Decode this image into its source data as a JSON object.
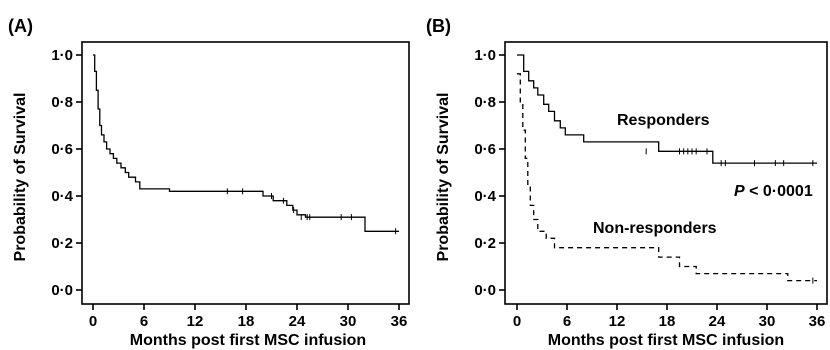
{
  "chart_data": [
    {
      "type": "line",
      "panel_label": "(A)",
      "xlabel": "Months post first MSC infusion",
      "ylabel": "Probability of Survival",
      "xlim": [
        0,
        36
      ],
      "ylim": [
        0,
        1
      ],
      "xticks": [
        0,
        6,
        12,
        18,
        24,
        30,
        36
      ],
      "xtick_labels": [
        "0",
        "6",
        "12",
        "18",
        "24",
        "30",
        "36"
      ],
      "yticks": [
        0,
        0.2,
        0.4,
        0.6,
        0.8,
        1.0
      ],
      "ytick_labels": [
        "0·0",
        "0·2",
        "0·4",
        "0·6",
        "0·8",
        "1·0"
      ],
      "series": [
        {
          "style": "solid",
          "step": [
            [
              0,
              1.0
            ],
            [
              0.2,
              0.93
            ],
            [
              0.4,
              0.85
            ],
            [
              0.6,
              0.77
            ],
            [
              0.8,
              0.7
            ],
            [
              1.0,
              0.66
            ],
            [
              1.3,
              0.63
            ],
            [
              1.6,
              0.6
            ],
            [
              2.0,
              0.58
            ],
            [
              2.4,
              0.56
            ],
            [
              2.8,
              0.54
            ],
            [
              3.3,
              0.52
            ],
            [
              3.8,
              0.5
            ],
            [
              4.2,
              0.48
            ],
            [
              5.0,
              0.46
            ],
            [
              5.5,
              0.43
            ],
            [
              9.0,
              0.42
            ],
            [
              20.0,
              0.4
            ],
            [
              21.2,
              0.38
            ],
            [
              22.8,
              0.36
            ],
            [
              23.5,
              0.34
            ],
            [
              24.0,
              0.32
            ],
            [
              25.0,
              0.31
            ],
            [
              32.0,
              0.25
            ],
            [
              36.0,
              0.25
            ]
          ],
          "censored": [
            [
              15.8,
              0.42
            ],
            [
              17.6,
              0.42
            ],
            [
              21.0,
              0.4
            ],
            [
              22.4,
              0.38
            ],
            [
              23.6,
              0.34
            ],
            [
              24.5,
              0.31
            ],
            [
              25.2,
              0.31
            ],
            [
              25.5,
              0.31
            ],
            [
              29.2,
              0.31
            ],
            [
              30.4,
              0.31
            ],
            [
              35.6,
              0.25
            ]
          ]
        }
      ]
    },
    {
      "type": "line",
      "panel_label": "(B)",
      "xlabel": "Months post first MSC infusion",
      "ylabel": "Probability of Survival",
      "xlim": [
        0,
        36
      ],
      "ylim": [
        0,
        1
      ],
      "xticks": [
        0,
        6,
        12,
        18,
        24,
        30,
        36
      ],
      "xtick_labels": [
        "0",
        "6",
        "12",
        "18",
        "24",
        "30",
        "36"
      ],
      "yticks": [
        0,
        0.2,
        0.4,
        0.6,
        0.8,
        1.0
      ],
      "ytick_labels": [
        "0·0",
        "0·2",
        "0·4",
        "0·6",
        "0·8",
        "1·0"
      ],
      "annotations": {
        "p_prefix": "P",
        "p_rest": " < 0·0001"
      },
      "series": [
        {
          "name": "Responders",
          "style": "solid",
          "step": [
            [
              0,
              1.0
            ],
            [
              0.8,
              0.93
            ],
            [
              1.4,
              0.89
            ],
            [
              2.0,
              0.86
            ],
            [
              2.5,
              0.83
            ],
            [
              3.2,
              0.79
            ],
            [
              3.8,
              0.76
            ],
            [
              4.5,
              0.72
            ],
            [
              5.2,
              0.69
            ],
            [
              5.8,
              0.66
            ],
            [
              8.0,
              0.63
            ],
            [
              17.0,
              0.59
            ],
            [
              23.5,
              0.54
            ],
            [
              36.0,
              0.54
            ]
          ],
          "censored": [
            [
              15.5,
              0.59
            ],
            [
              19.5,
              0.59
            ],
            [
              20.0,
              0.59
            ],
            [
              20.5,
              0.59
            ],
            [
              21.0,
              0.59
            ],
            [
              21.5,
              0.59
            ],
            [
              22.8,
              0.59
            ],
            [
              24.5,
              0.54
            ],
            [
              25.0,
              0.54
            ],
            [
              28.5,
              0.54
            ],
            [
              31.0,
              0.54
            ],
            [
              32.0,
              0.54
            ],
            [
              35.5,
              0.54
            ]
          ]
        },
        {
          "name": "Non-responders",
          "style": "dashed",
          "step": [
            [
              0,
              0.92
            ],
            [
              0.4,
              0.8
            ],
            [
              0.7,
              0.68
            ],
            [
              1.0,
              0.56
            ],
            [
              1.3,
              0.45
            ],
            [
              1.6,
              0.36
            ],
            [
              2.0,
              0.3
            ],
            [
              2.5,
              0.25
            ],
            [
              3.5,
              0.22
            ],
            [
              4.5,
              0.18
            ],
            [
              17.0,
              0.14
            ],
            [
              19.5,
              0.1
            ],
            [
              21.5,
              0.07
            ],
            [
              32.5,
              0.04
            ],
            [
              36.0,
              0.04
            ]
          ],
          "censored": [
            [
              35.5,
              0.04
            ]
          ]
        }
      ]
    }
  ]
}
